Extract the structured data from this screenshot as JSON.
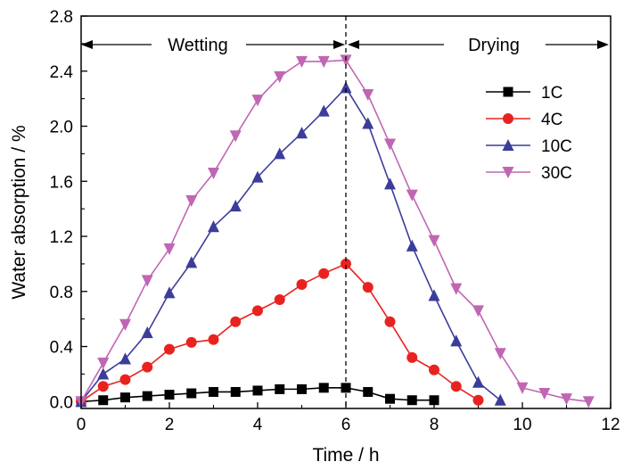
{
  "chart_data": {
    "type": "line",
    "title": "",
    "xlabel": "Time / h",
    "ylabel": "Water absorption / %",
    "xlim": [
      0,
      12
    ],
    "ylim": [
      -0.05,
      2.8
    ],
    "xticks": [
      0,
      2,
      4,
      6,
      8,
      10,
      12
    ],
    "yticks": [
      0.0,
      0.4,
      0.8,
      1.2,
      1.6,
      2.0,
      2.4,
      2.8
    ],
    "ytick_labels": [
      "0.0",
      "0.4",
      "0.8",
      "1.2",
      "1.6",
      "2.0",
      "2.4",
      "2.8"
    ],
    "grid": false,
    "legend_position": "right",
    "annotations": {
      "wetting": "Wetting",
      "drying": "Drying",
      "divider_x": 6
    },
    "series": [
      {
        "name": "1C",
        "color": "#000000",
        "marker": "square",
        "x": [
          0,
          0.5,
          1,
          1.5,
          2,
          2.5,
          3,
          3.5,
          4,
          4.5,
          5,
          5.5,
          6,
          6.5,
          7,
          7.5,
          8
        ],
        "y": [
          0.0,
          0.01,
          0.03,
          0.04,
          0.05,
          0.06,
          0.07,
          0.07,
          0.08,
          0.09,
          0.09,
          0.1,
          0.1,
          0.07,
          0.02,
          0.01,
          0.01
        ]
      },
      {
        "name": "4C",
        "color": "#e8231f",
        "marker": "circle",
        "x": [
          0,
          0.5,
          1,
          1.5,
          2,
          2.5,
          3,
          3.5,
          4,
          4.5,
          5,
          5.5,
          6,
          6.5,
          7,
          7.5,
          8,
          8.5,
          9
        ],
        "y": [
          0.0,
          0.11,
          0.16,
          0.25,
          0.38,
          0.43,
          0.45,
          0.58,
          0.66,
          0.74,
          0.85,
          0.93,
          1.0,
          0.83,
          0.58,
          0.32,
          0.23,
          0.11,
          0.01
        ]
      },
      {
        "name": "10C",
        "color": "#3c3c9a",
        "marker": "triangle-up",
        "x": [
          0,
          0.5,
          1,
          1.5,
          2,
          2.5,
          3,
          3.5,
          4,
          4.5,
          5,
          5.5,
          6,
          6.5,
          7,
          7.5,
          8,
          8.5,
          9,
          9.5
        ],
        "y": [
          0.0,
          0.2,
          0.31,
          0.5,
          0.79,
          1.01,
          1.27,
          1.42,
          1.63,
          1.8,
          1.95,
          2.11,
          2.28,
          2.02,
          1.58,
          1.13,
          0.77,
          0.44,
          0.14,
          0.01
        ]
      },
      {
        "name": "30C",
        "color": "#c066b3",
        "marker": "triangle-down",
        "x": [
          0,
          0.5,
          1,
          1.5,
          2,
          2.5,
          3,
          3.5,
          4,
          4.5,
          5,
          5.5,
          6,
          6.5,
          7,
          7.5,
          8,
          8.5,
          9,
          9.5,
          10,
          10.5,
          11,
          11.5
        ],
        "y": [
          0.0,
          0.28,
          0.56,
          0.88,
          1.11,
          1.46,
          1.66,
          1.93,
          2.19,
          2.36,
          2.47,
          2.47,
          2.48,
          2.23,
          1.87,
          1.5,
          1.17,
          0.82,
          0.66,
          0.35,
          0.1,
          0.06,
          0.02,
          0.0
        ]
      }
    ]
  }
}
